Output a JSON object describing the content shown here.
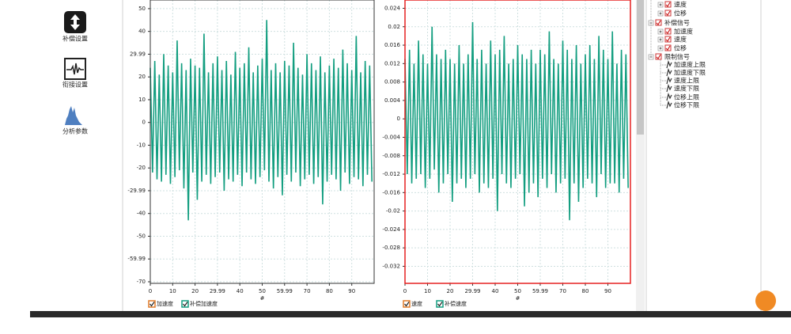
{
  "sidebar": {
    "buttons": [
      "补偿设置",
      "衔接设置",
      "分析参数"
    ]
  },
  "charts": [
    {
      "type": "line",
      "selected": false,
      "grid": true,
      "xlabel": "#",
      "xlim": [
        0,
        100
      ],
      "xticks": [
        0,
        10,
        20,
        29.99,
        40,
        50,
        59.99,
        70,
        80,
        90
      ],
      "ylim": [
        -70.7,
        53.8
      ],
      "yticks": [
        50,
        40,
        29.99,
        20,
        10,
        0,
        -10,
        -20,
        -29.99,
        -40,
        -50,
        -59.99,
        -70
      ],
      "x": [
        0,
        1,
        2,
        3,
        4,
        5,
        6,
        7,
        8,
        9,
        10,
        11,
        12,
        13,
        14,
        15,
        16,
        17,
        18,
        19,
        20,
        21,
        22,
        23,
        24,
        25,
        26,
        27,
        28,
        29,
        30,
        31,
        32,
        33,
        34,
        35,
        36,
        37,
        38,
        39,
        40,
        41,
        42,
        43,
        44,
        45,
        46,
        47,
        48,
        49,
        50,
        51,
        52,
        53,
        54,
        55,
        56,
        57,
        58,
        59,
        60,
        61,
        62,
        63,
        64,
        65,
        66,
        67,
        68,
        69,
        70,
        71,
        72,
        73,
        74,
        75,
        76,
        77,
        78,
        79,
        80,
        81,
        82,
        83,
        84,
        85,
        86,
        87,
        88,
        89,
        90,
        91,
        92,
        93,
        94,
        95,
        96,
        97,
        98,
        99
      ],
      "series": [
        {
          "name": "加速度",
          "color": "#e07b2a",
          "visible": false
        },
        {
          "name": "补偿加速度",
          "color": "#139e80",
          "visible": true,
          "values": [
            24,
            -22,
            27,
            -25,
            21,
            -26,
            30,
            -23,
            25,
            -27,
            22,
            -24,
            36,
            -21,
            26,
            -29,
            23,
            -43,
            28,
            -22,
            25,
            -34,
            24,
            -26,
            39,
            -23,
            22,
            -27,
            26,
            -24,
            29,
            -22,
            23,
            -30,
            27,
            -25,
            21,
            -26,
            31,
            -23,
            24,
            -28,
            26,
            -22,
            33,
            -25,
            22,
            -27,
            25,
            -24,
            28,
            -21,
            45,
            -26,
            23,
            -29,
            26,
            -24,
            22,
            -32,
            27,
            -23,
            25,
            -26,
            35,
            -22,
            24,
            -28,
            21,
            -25,
            30,
            -23,
            26,
            -27,
            23,
            -24,
            29,
            -36,
            22,
            -26,
            25,
            -23,
            28,
            -25,
            24,
            -30,
            32,
            -22,
            26,
            -27,
            23,
            -24,
            38,
            -25,
            22,
            -28,
            27,
            -23,
            25,
            -26
          ]
        }
      ]
    },
    {
      "type": "line",
      "selected": true,
      "grid": true,
      "xlabel": "#",
      "xlim": [
        0,
        100
      ],
      "xticks": [
        0,
        10,
        20,
        29.99,
        40,
        50,
        59.99,
        70,
        80,
        90
      ],
      "ylim": [
        -0.0357,
        0.0258
      ],
      "yticks": [
        0.024,
        0.02,
        0.016,
        0.012,
        0.008,
        0.004,
        0,
        -0.004,
        -0.008,
        -0.012,
        -0.016,
        -0.02,
        -0.024,
        -0.028,
        -0.032
      ],
      "x": [
        0,
        1,
        2,
        3,
        4,
        5,
        6,
        7,
        8,
        9,
        10,
        11,
        12,
        13,
        14,
        15,
        16,
        17,
        18,
        19,
        20,
        21,
        22,
        23,
        24,
        25,
        26,
        27,
        28,
        29,
        30,
        31,
        32,
        33,
        34,
        35,
        36,
        37,
        38,
        39,
        40,
        41,
        42,
        43,
        44,
        45,
        46,
        47,
        48,
        49,
        50,
        51,
        52,
        53,
        54,
        55,
        56,
        57,
        58,
        59,
        60,
        61,
        62,
        63,
        64,
        65,
        66,
        67,
        68,
        69,
        70,
        71,
        72,
        73,
        74,
        75,
        76,
        77,
        78,
        79,
        80,
        81,
        82,
        83,
        84,
        85,
        86,
        87,
        88,
        89,
        90,
        91,
        92,
        93,
        94,
        95,
        96,
        97,
        98,
        99
      ],
      "series": [
        {
          "name": "速度",
          "color": "#e07b2a",
          "visible": false
        },
        {
          "name": "补偿速度",
          "color": "#139e80",
          "visible": true,
          "values": [
            0.013,
            -0.012,
            0.015,
            -0.014,
            0.012,
            -0.013,
            0.017,
            -0.012,
            0.014,
            -0.015,
            0.012,
            -0.013,
            0.02,
            -0.011,
            0.014,
            -0.016,
            0.013,
            -0.014,
            0.015,
            -0.012,
            0.013,
            -0.018,
            0.012,
            -0.014,
            0.016,
            -0.013,
            0.012,
            -0.015,
            0.014,
            -0.013,
            0.021,
            -0.012,
            0.013,
            -0.016,
            0.015,
            -0.014,
            0.012,
            -0.015,
            0.017,
            -0.013,
            0.014,
            -0.02,
            0.015,
            -0.012,
            0.018,
            -0.014,
            0.012,
            -0.015,
            0.013,
            -0.013,
            0.016,
            -0.012,
            0.014,
            -0.019,
            0.013,
            -0.016,
            0.015,
            -0.014,
            0.012,
            -0.017,
            0.015,
            -0.013,
            0.014,
            -0.015,
            0.019,
            -0.012,
            0.013,
            -0.016,
            0.012,
            -0.014,
            0.017,
            -0.013,
            0.015,
            -0.022,
            0.013,
            -0.014,
            0.016,
            -0.018,
            0.012,
            -0.015,
            0.014,
            -0.013,
            0.016,
            -0.014,
            0.013,
            -0.017,
            0.018,
            -0.012,
            0.015,
            -0.015,
            0.013,
            -0.014,
            0.019,
            -0.014,
            0.012,
            -0.016,
            0.015,
            -0.013,
            0.014,
            -0.015
          ]
        }
      ]
    }
  ],
  "tree": {
    "items": [
      {
        "label": "速度",
        "level": 1,
        "kind": "item"
      },
      {
        "label": "位移",
        "level": 1,
        "kind": "item"
      },
      {
        "label": "补偿信号",
        "level": 0,
        "kind": "group"
      },
      {
        "label": "加速度",
        "level": 1,
        "kind": "item"
      },
      {
        "label": "速度",
        "level": 1,
        "kind": "item"
      },
      {
        "label": "位移",
        "level": 1,
        "kind": "item"
      },
      {
        "label": "限制信号",
        "level": 0,
        "kind": "group"
      },
      {
        "label": "加速度上限",
        "level": 1,
        "kind": "limit"
      },
      {
        "label": "加速度下限",
        "level": 1,
        "kind": "limit"
      },
      {
        "label": "速度上限",
        "level": 1,
        "kind": "limit"
      },
      {
        "label": "速度下限",
        "level": 1,
        "kind": "limit"
      },
      {
        "label": "位移上限",
        "level": 1,
        "kind": "limit"
      },
      {
        "label": "位移下限",
        "level": 1,
        "kind": "limit"
      }
    ]
  }
}
